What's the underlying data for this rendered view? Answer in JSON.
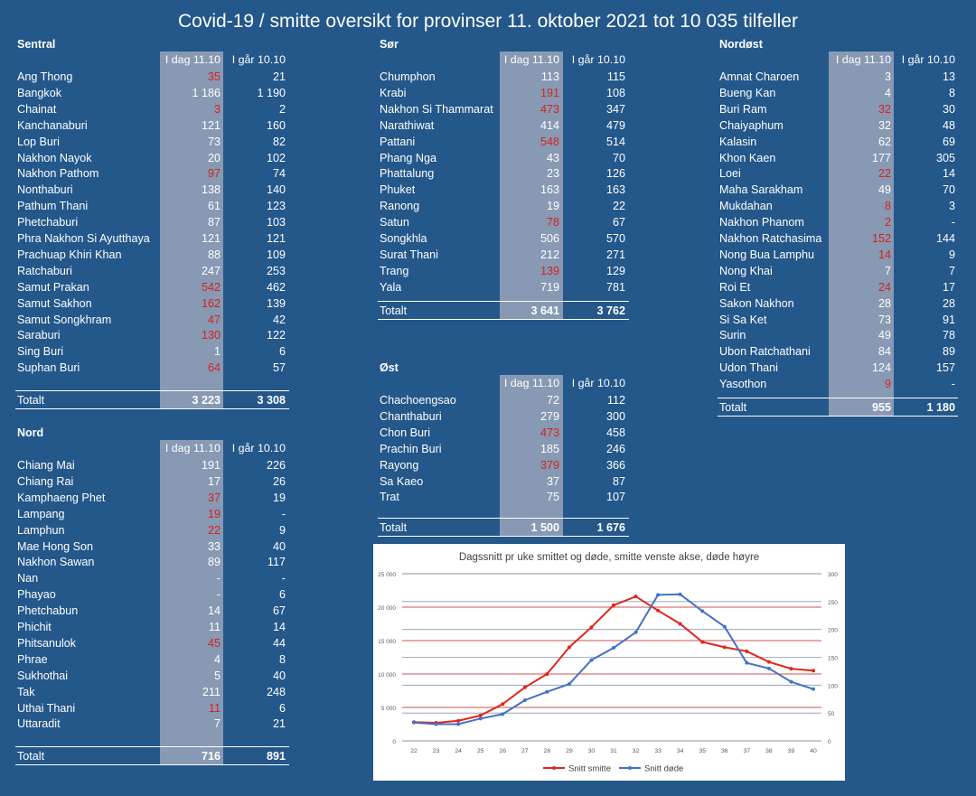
{
  "title": "Covid-19 / smitte oversikt for provinser 11. oktober 2021 tot 10 035 tilfeller",
  "colors": {
    "background": "#24578a",
    "shade": "#8799b3",
    "highlight": "#d6231c",
    "infection_line": "#e0261b",
    "death_line": "#4472c4"
  },
  "regions": [
    {
      "key": "sentral",
      "name": "Sentral",
      "col_today": "I dag 11.10",
      "col_yesterday": "I går 10.10",
      "rows": [
        {
          "name": "Ang Thong",
          "today": "35",
          "yesterday": "21",
          "up": true
        },
        {
          "name": "Bangkok",
          "today": "1 186",
          "yesterday": "1 190",
          "up": false
        },
        {
          "name": "Chainat",
          "today": "3",
          "yesterday": "2",
          "up": true
        },
        {
          "name": "Kanchanaburi",
          "today": "121",
          "yesterday": "160",
          "up": false
        },
        {
          "name": "Lop Buri",
          "today": "73",
          "yesterday": "82",
          "up": false
        },
        {
          "name": "Nakhon Nayok",
          "today": "20",
          "yesterday": "102",
          "up": false
        },
        {
          "name": "Nakhon Pathom",
          "today": "97",
          "yesterday": "74",
          "up": true
        },
        {
          "name": "Nonthaburi",
          "today": "138",
          "yesterday": "140",
          "up": false
        },
        {
          "name": "Pathum Thani",
          "today": "61",
          "yesterday": "123",
          "up": false
        },
        {
          "name": "Phetchaburi",
          "today": "87",
          "yesterday": "103",
          "up": false
        },
        {
          "name": "Phra Nakhon Si Ayutthaya",
          "today": "121",
          "yesterday": "121",
          "up": false
        },
        {
          "name": "Prachuap Khiri Khan",
          "today": "88",
          "yesterday": "109",
          "up": false
        },
        {
          "name": "Ratchaburi",
          "today": "247",
          "yesterday": "253",
          "up": false
        },
        {
          "name": "Samut Prakan",
          "today": "542",
          "yesterday": "462",
          "up": true
        },
        {
          "name": "Samut Sakhon",
          "today": "162",
          "yesterday": "139",
          "up": true
        },
        {
          "name": "Samut Songkhram",
          "today": "47",
          "yesterday": "42",
          "up": true
        },
        {
          "name": "Saraburi",
          "today": "130",
          "yesterday": "122",
          "up": true
        },
        {
          "name": "Sing Buri",
          "today": "1",
          "yesterday": "6",
          "up": false
        },
        {
          "name": "Suphan Buri",
          "today": "64",
          "yesterday": "57",
          "up": true
        }
      ],
      "total_label": "Totalt",
      "total_today": "3 223",
      "total_yesterday": "3 308"
    },
    {
      "key": "nord",
      "name": "Nord",
      "col_today": "I dag 11.10",
      "col_yesterday": "I går 10.10",
      "rows": [
        {
          "name": "Chiang Mai",
          "today": "191",
          "yesterday": "226",
          "up": false
        },
        {
          "name": "Chiang Rai",
          "today": "17",
          "yesterday": "26",
          "up": false
        },
        {
          "name": "Kamphaeng Phet",
          "today": "37",
          "yesterday": "19",
          "up": true
        },
        {
          "name": "Lampang",
          "today": "19",
          "yesterday": "-",
          "up": true
        },
        {
          "name": "Lamphun",
          "today": "22",
          "yesterday": "9",
          "up": true
        },
        {
          "name": "Mae Hong Son",
          "today": "33",
          "yesterday": "40",
          "up": false
        },
        {
          "name": "Nakhon Sawan",
          "today": "89",
          "yesterday": "117",
          "up": false
        },
        {
          "name": "Nan",
          "today": "-",
          "yesterday": "-",
          "up": false
        },
        {
          "name": "Phayao",
          "today": "-",
          "yesterday": "6",
          "up": false
        },
        {
          "name": "Phetchabun",
          "today": "14",
          "yesterday": "67",
          "up": false
        },
        {
          "name": "Phichit",
          "today": "11",
          "yesterday": "14",
          "up": false
        },
        {
          "name": "Phitsanulok",
          "today": "45",
          "yesterday": "44",
          "up": true
        },
        {
          "name": "Phrae",
          "today": "4",
          "yesterday": "8",
          "up": false
        },
        {
          "name": "Sukhothai",
          "today": "5",
          "yesterday": "40",
          "up": false
        },
        {
          "name": "Tak",
          "today": "211",
          "yesterday": "248",
          "up": false
        },
        {
          "name": "Uthai Thani",
          "today": "11",
          "yesterday": "6",
          "up": true
        },
        {
          "name": "Uttaradit",
          "today": "7",
          "yesterday": "21",
          "up": false
        }
      ],
      "total_label": "Totalt",
      "total_today": "716",
      "total_yesterday": "891"
    },
    {
      "key": "sor",
      "name": "Sør",
      "col_today": "I dag 11.10",
      "col_yesterday": "I går 10.10",
      "rows": [
        {
          "name": "Chumphon",
          "today": "113",
          "yesterday": "115",
          "up": false
        },
        {
          "name": "Krabi",
          "today": "191",
          "yesterday": "108",
          "up": true
        },
        {
          "name": "Nakhon Si Thammarat",
          "today": "473",
          "yesterday": "347",
          "up": true
        },
        {
          "name": "Narathiwat",
          "today": "414",
          "yesterday": "479",
          "up": false
        },
        {
          "name": "Pattani",
          "today": "548",
          "yesterday": "514",
          "up": true
        },
        {
          "name": "Phang Nga",
          "today": "43",
          "yesterday": "70",
          "up": false
        },
        {
          "name": "Phattalung",
          "today": "23",
          "yesterday": "126",
          "up": false
        },
        {
          "name": "Phuket",
          "today": "163",
          "yesterday": "163",
          "up": false
        },
        {
          "name": "Ranong",
          "today": "19",
          "yesterday": "22",
          "up": false
        },
        {
          "name": "Satun",
          "today": "78",
          "yesterday": "67",
          "up": true
        },
        {
          "name": "Songkhla",
          "today": "506",
          "yesterday": "570",
          "up": false
        },
        {
          "name": "Surat Thani",
          "today": "212",
          "yesterday": "271",
          "up": false
        },
        {
          "name": "Trang",
          "today": "139",
          "yesterday": "129",
          "up": true
        },
        {
          "name": "Yala",
          "today": "719",
          "yesterday": "781",
          "up": false
        }
      ],
      "total_label": "Totalt",
      "total_today": "3 641",
      "total_yesterday": "3 762"
    },
    {
      "key": "ost",
      "name": "Øst",
      "col_today": "I dag 11.10",
      "col_yesterday": "I går 10.10",
      "rows": [
        {
          "name": "Chachoengsao",
          "today": "72",
          "yesterday": "112",
          "up": false
        },
        {
          "name": "Chanthaburi",
          "today": "279",
          "yesterday": "300",
          "up": false
        },
        {
          "name": "Chon Buri",
          "today": "473",
          "yesterday": "458",
          "up": true
        },
        {
          "name": "Prachin Buri",
          "today": "185",
          "yesterday": "246",
          "up": false
        },
        {
          "name": "Rayong",
          "today": "379",
          "yesterday": "366",
          "up": true
        },
        {
          "name": "Sa Kaeo",
          "today": "37",
          "yesterday": "87",
          "up": false
        },
        {
          "name": "Trat",
          "today": "75",
          "yesterday": "107",
          "up": false
        }
      ],
      "total_label": "Totalt",
      "total_today": "1 500",
      "total_yesterday": "1 676"
    },
    {
      "key": "nordost",
      "name": "Nordøst",
      "col_today": "I dag 11.10",
      "col_yesterday": "I går 10.10",
      "rows": [
        {
          "name": "Amnat Charoen",
          "today": "3",
          "yesterday": "13",
          "up": false
        },
        {
          "name": "Bueng Kan",
          "today": "4",
          "yesterday": "8",
          "up": false
        },
        {
          "name": "Buri Ram",
          "today": "32",
          "yesterday": "30",
          "up": true
        },
        {
          "name": "Chaiyaphum",
          "today": "32",
          "yesterday": "48",
          "up": false
        },
        {
          "name": "Kalasin",
          "today": "62",
          "yesterday": "69",
          "up": false
        },
        {
          "name": "Khon Kaen",
          "today": "177",
          "yesterday": "305",
          "up": false
        },
        {
          "name": "Loei",
          "today": "22",
          "yesterday": "14",
          "up": true
        },
        {
          "name": "Maha Sarakham",
          "today": "49",
          "yesterday": "70",
          "up": false
        },
        {
          "name": "Mukdahan",
          "today": "8",
          "yesterday": "3",
          "up": true
        },
        {
          "name": "Nakhon Phanom",
          "today": "2",
          "yesterday": "-",
          "up": true
        },
        {
          "name": "Nakhon Ratchasima",
          "today": "152",
          "yesterday": "144",
          "up": true
        },
        {
          "name": "Nong Bua Lamphu",
          "today": "14",
          "yesterday": "9",
          "up": true
        },
        {
          "name": "Nong Khai",
          "today": "7",
          "yesterday": "7",
          "up": false
        },
        {
          "name": "Roi Et",
          "today": "24",
          "yesterday": "17",
          "up": true
        },
        {
          "name": "Sakon Nakhon",
          "today": "28",
          "yesterday": "28",
          "up": false
        },
        {
          "name": "Si Sa Ket",
          "today": "73",
          "yesterday": "91",
          "up": false
        },
        {
          "name": "Surin",
          "today": "49",
          "yesterday": "78",
          "up": false
        },
        {
          "name": "Ubon Ratchathani",
          "today": "84",
          "yesterday": "89",
          "up": false
        },
        {
          "name": "Udon Thani",
          "today": "124",
          "yesterday": "157",
          "up": false
        },
        {
          "name": "Yasothon",
          "today": "9",
          "yesterday": "-",
          "up": true
        }
      ],
      "total_label": "Totalt",
      "total_today": "955",
      "total_yesterday": "1 180"
    }
  ],
  "chart_data": {
    "type": "line",
    "title": "Dagssnitt pr uke smittet og døde, smitte venste akse, døde høyre",
    "x": [
      22,
      23,
      24,
      25,
      26,
      27,
      28,
      29,
      30,
      31,
      32,
      33,
      34,
      35,
      36,
      37,
      38,
      39,
      40
    ],
    "xticks": [
      "22",
      "23",
      "24",
      "25",
      "26",
      "27",
      "28",
      "29",
      "30",
      "31",
      "32",
      "33",
      "34",
      "35",
      "36",
      "37",
      "38",
      "39",
      "40"
    ],
    "y_left_ticks": [
      "0",
      "5 000",
      "10 000",
      "15 000",
      "20 000",
      "25 000"
    ],
    "y_right_ticks": [
      "0",
      "50",
      "100",
      "150",
      "200",
      "250",
      "300"
    ],
    "ylim_left": [
      0,
      25000
    ],
    "ylim_right": [
      0,
      300
    ],
    "grid": true,
    "legend_position": "bottom",
    "series": [
      {
        "name": "Snitt smitte",
        "axis": "left",
        "color": "#e0261b",
        "values": [
          2800,
          2700,
          3000,
          3800,
          5500,
          8000,
          10000,
          14000,
          17000,
          20300,
          21600,
          19500,
          17500,
          14800,
          14000,
          13400,
          11800,
          10800,
          10500
        ]
      },
      {
        "name": "Snitt døde",
        "axis": "right",
        "color": "#4472c4",
        "values": [
          33,
          30,
          30,
          40,
          48,
          73,
          88,
          102,
          145,
          167,
          195,
          262,
          263,
          233,
          205,
          140,
          130,
          106,
          93
        ]
      }
    ]
  }
}
